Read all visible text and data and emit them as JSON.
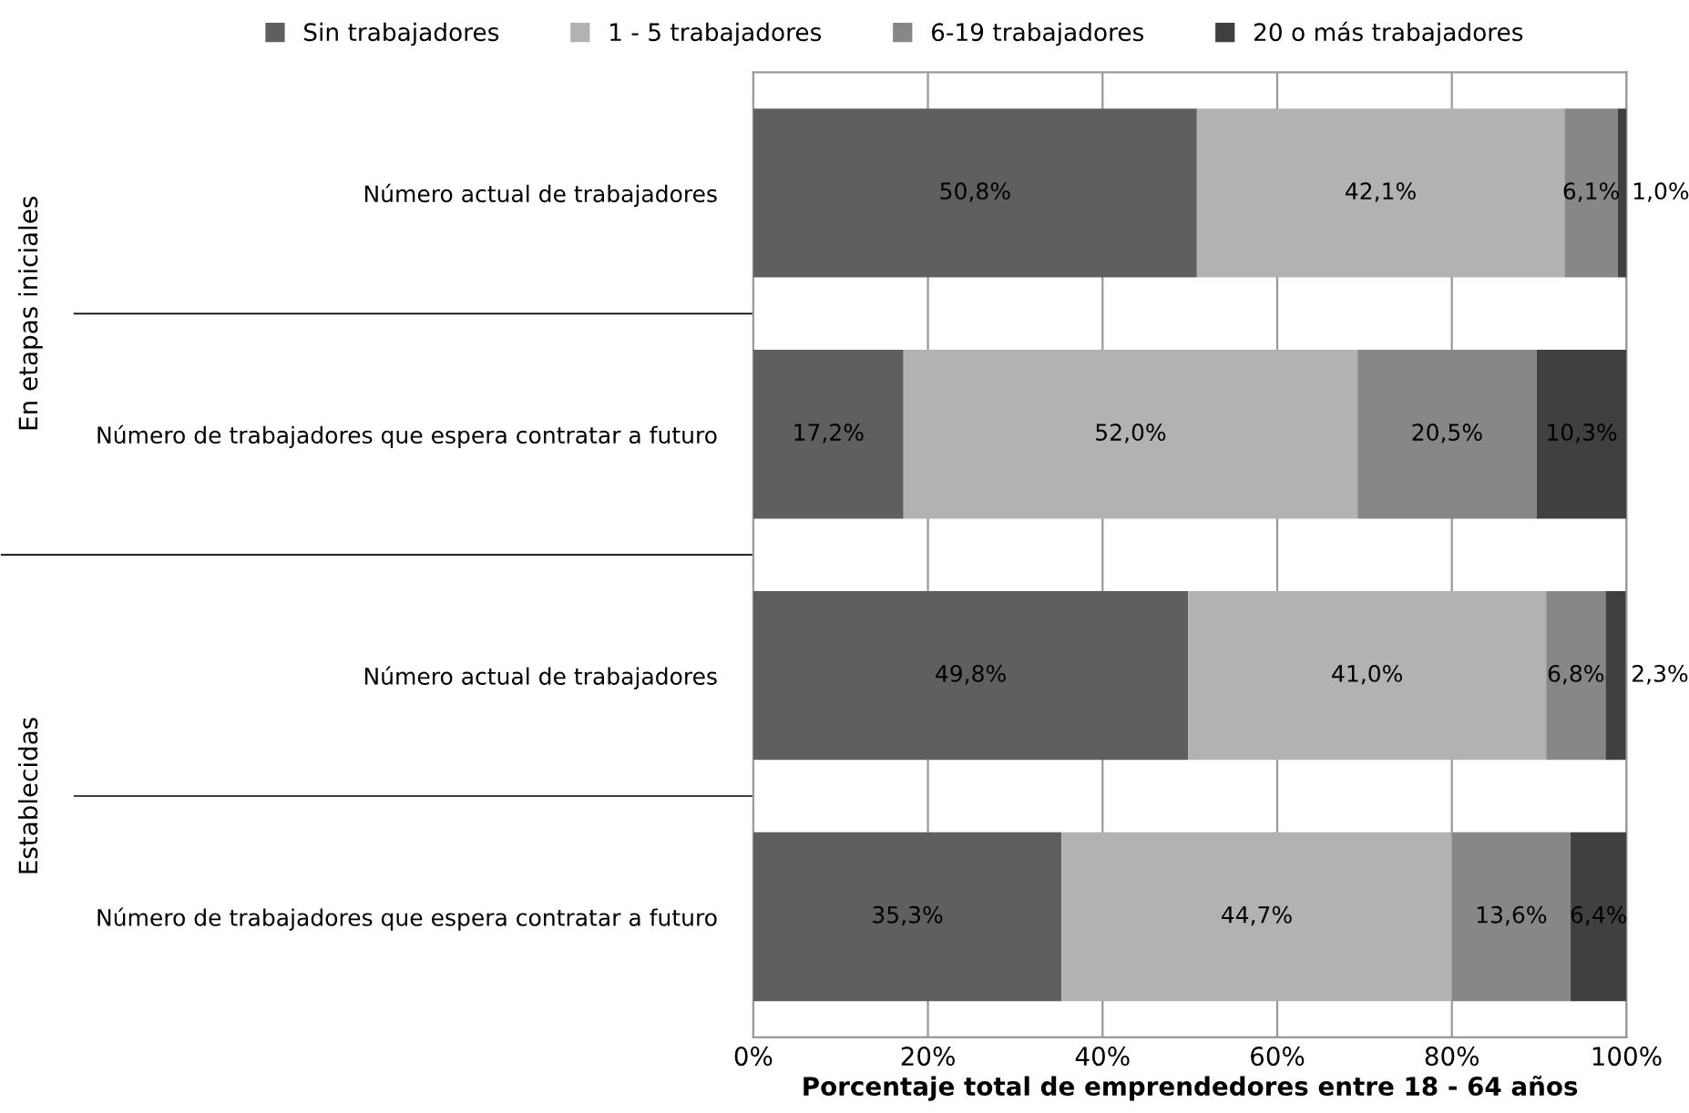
{
  "chart_data": {
    "type": "bar",
    "orientation": "horizontal",
    "stacked": true,
    "categories": [
      "Número actual de trabajadores",
      "Número de trabajadores que espera contratar a futuro",
      "Número actual de trabajadores",
      "Número de trabajadores que espera contratar a futuro"
    ],
    "series": [
      {
        "name": "Sin trabajadores",
        "color": "#5f5f5f",
        "values": [
          50.8,
          17.2,
          49.8,
          35.3
        ],
        "value_labels": [
          "50,8%",
          "17,2%",
          "49,8%",
          "35,3%"
        ]
      },
      {
        "name": "1 - 5 trabajadores",
        "color": "#b2b2b2",
        "values": [
          42.1,
          52.0,
          41.0,
          44.7
        ],
        "value_labels": [
          "42,1%",
          "52,0%",
          "41,0%",
          "44,7%"
        ]
      },
      {
        "name": "6-19 trabajadores",
        "color": "#878787",
        "values": [
          6.1,
          20.5,
          6.8,
          13.6
        ],
        "value_labels": [
          "6,1%",
          "20,5%",
          "6,8%",
          "13,6%"
        ]
      },
      {
        "name": "20 o más trabajadores",
        "color": "#404040",
        "values": [
          1.0,
          10.3,
          2.3,
          6.4
        ],
        "value_labels": [
          "1,0%",
          "10,3%",
          "2,3%",
          "6,4%"
        ]
      }
    ],
    "annotations": [
      "En etapas iniciales",
      "Establecidas"
    ],
    "xlabel": "Porcentaje total de emprendedores entre 18 - 64 años",
    "xlim": [
      0,
      100
    ],
    "xticks": [
      {
        "value": 0,
        "label": "0%"
      },
      {
        "value": 20,
        "label": "20%"
      },
      {
        "value": 40,
        "label": "40%"
      },
      {
        "value": 60,
        "label": "60%"
      },
      {
        "value": 80,
        "label": "80%"
      },
      {
        "value": 100,
        "label": "100%"
      }
    ],
    "grid": "x",
    "legend": "top"
  }
}
